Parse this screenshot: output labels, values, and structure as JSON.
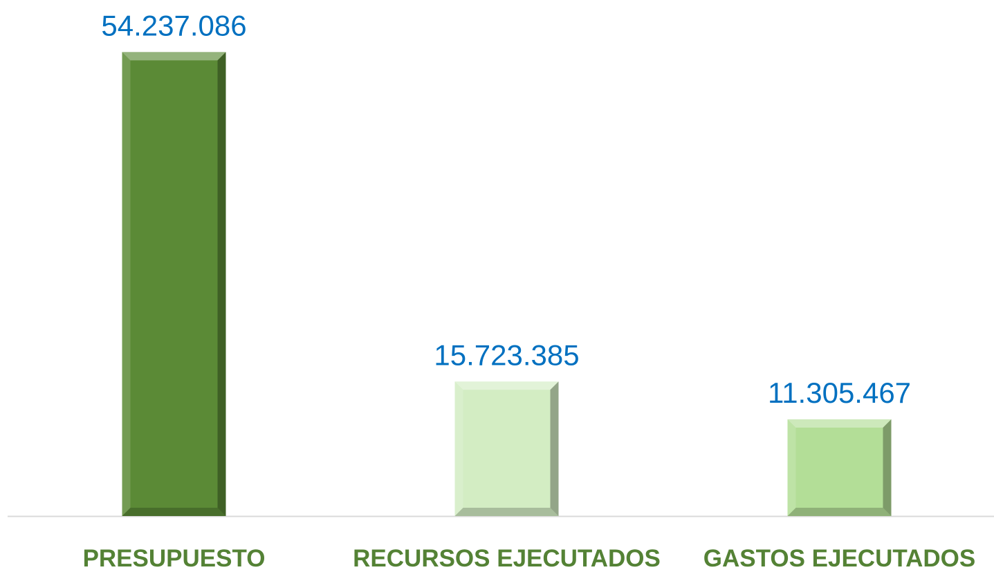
{
  "chart_data": {
    "type": "bar",
    "categories": [
      "PRESUPUESTO",
      "RECURSOS EJECUTADOS",
      "GASTOS EJECUTADOS"
    ],
    "values": [
      54237086,
      15723385,
      11305467
    ],
    "value_labels": [
      "54.237.086",
      "15.723.385",
      "11.305.467"
    ],
    "colors": [
      "#5b8a36",
      "#d3edc3",
      "#b3de97"
    ],
    "ylim": [
      0,
      60000000
    ]
  }
}
